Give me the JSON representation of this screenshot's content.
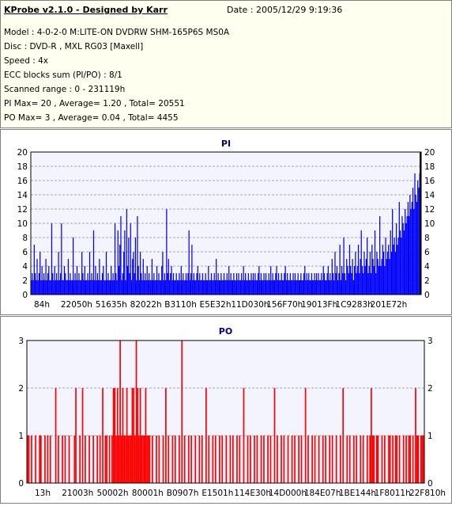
{
  "header": {
    "title": "KProbe v2.1.0 - Designed by Karr",
    "date": "Date : 2005/12/29 9:19:36",
    "lines": [
      "Model : 4-0-2-0 M:LITE-ON DVDRW SHM-165P6S MS0A",
      "Disc : DVD-R , MXL RG03 [Maxell]",
      "Speed : 4x",
      "ECC blocks sum (PI/PO) : 8/1",
      "Scanned range : 0 - 231119h",
      "PI Max= 20 , Average= 1.20 , Total= 20551",
      "PO Max= 3 , Average= 0.04 , Total= 4455"
    ]
  },
  "colors": {
    "pi": "#0000ff",
    "po": "#ff0000",
    "bg": "#f4f4ff",
    "grid": "#909090",
    "title": "#000080"
  },
  "chart_data": [
    {
      "type": "bar",
      "title": "PI",
      "ylim": [
        0,
        20
      ],
      "yticks": [
        0,
        2,
        4,
        6,
        8,
        10,
        12,
        14,
        16,
        18,
        20
      ],
      "xticklabels": [
        "84h",
        "22050h",
        "51635h",
        "82022h",
        "B3110h",
        "E5E32h",
        "11D030h",
        "156F70h",
        "19013Fh",
        "1C9283h",
        "201E72h"
      ],
      "x_range": [
        0,
        231119
      ],
      "series": [
        {
          "values": [
            2,
            3,
            2,
            7,
            3,
            2,
            5,
            2,
            3,
            6,
            2,
            4,
            2,
            3,
            2,
            5,
            2,
            3,
            4,
            2,
            2,
            10,
            3,
            2,
            4,
            2,
            3,
            2,
            6,
            2,
            3,
            10,
            2,
            2,
            4,
            3,
            2,
            2,
            5,
            2,
            3,
            2,
            2,
            8,
            2,
            3,
            2,
            4,
            2,
            3,
            2,
            2,
            6,
            3,
            2,
            4,
            2,
            2,
            3,
            2,
            6,
            2,
            3,
            2,
            9,
            2,
            4,
            2,
            3,
            2,
            5,
            2,
            2,
            3,
            4,
            2,
            2,
            6,
            2,
            3,
            2,
            2,
            4,
            2,
            3,
            2,
            10,
            3,
            2,
            9,
            4,
            7,
            11,
            2,
            3,
            6,
            9,
            2,
            12,
            4,
            8,
            3,
            10,
            2,
            5,
            6,
            3,
            8,
            2,
            11,
            4,
            2,
            6,
            3,
            2,
            5,
            2,
            3,
            2,
            4,
            2,
            3,
            2,
            2,
            5,
            2,
            3,
            2,
            2,
            4,
            2,
            3,
            2,
            2,
            4,
            6,
            2,
            3,
            2,
            12,
            3,
            5,
            2,
            3,
            4,
            2,
            3,
            2,
            2,
            3,
            2,
            2,
            3,
            2,
            4,
            2,
            3,
            2,
            2,
            3,
            2,
            3,
            9,
            2,
            3,
            7,
            2,
            3,
            2,
            2,
            3,
            4,
            2,
            3,
            2,
            2,
            3,
            2,
            2,
            3,
            2,
            2,
            4,
            2,
            2,
            3,
            2,
            2,
            3,
            2,
            5,
            2,
            3,
            2,
            2,
            3,
            2,
            2,
            3,
            2,
            2,
            3,
            2,
            4,
            2,
            3,
            2,
            2,
            3,
            2,
            2,
            3,
            2,
            3,
            2,
            2,
            3,
            2,
            4,
            2,
            3,
            2,
            2,
            3,
            2,
            2,
            3,
            2,
            3,
            2,
            3,
            2,
            2,
            3,
            4,
            2,
            3,
            2,
            2,
            3,
            2,
            3,
            2,
            2,
            3,
            2,
            4,
            2,
            3,
            2,
            2,
            3,
            4,
            2,
            3,
            2,
            2,
            3,
            2,
            2,
            3,
            4,
            2,
            3,
            2,
            2,
            3,
            2,
            2,
            3,
            2,
            3,
            2,
            2,
            3,
            2,
            2,
            3,
            2,
            2,
            3,
            4,
            2,
            3,
            2,
            3,
            2,
            2,
            3,
            2,
            2,
            3,
            2,
            3,
            2,
            3,
            2,
            2,
            3,
            2,
            4,
            3,
            2,
            2,
            3,
            4,
            2,
            3,
            2,
            5,
            3,
            2,
            6,
            3,
            4,
            2,
            3,
            7,
            2,
            4,
            3,
            8,
            3,
            2,
            5,
            4,
            3,
            7,
            4,
            3,
            5,
            2,
            4,
            6,
            3,
            4,
            7,
            3,
            5,
            9,
            4,
            3,
            6,
            4,
            5,
            8,
            3,
            4,
            6,
            3,
            7,
            5,
            4,
            9,
            3,
            6,
            5,
            4,
            11,
            4,
            5,
            7,
            6,
            4,
            8,
            5,
            6,
            7,
            5,
            9,
            6,
            12,
            7,
            8,
            6,
            10,
            7,
            8,
            13,
            9,
            8,
            11,
            10,
            9,
            12,
            10,
            11,
            13,
            11,
            14,
            12,
            13,
            15,
            12,
            17,
            14,
            13,
            16,
            15,
            17,
            20
          ]
        }
      ]
    },
    {
      "type": "bar",
      "title": "PO",
      "ylim": [
        0,
        3
      ],
      "yticks": [
        0,
        1,
        2,
        3
      ],
      "xticklabels": [
        "13h",
        "21003h",
        "50002h",
        "80001h",
        "B0907h",
        "E1501h",
        "114E30h",
        "14D000h",
        "184E07h",
        "1BE144h",
        "1F8011h",
        "22F810h"
      ],
      "x_range": [
        0,
        231119
      ],
      "series": [
        {
          "values": [
            1,
            1,
            0,
            1,
            0,
            0,
            1,
            0,
            0,
            1,
            1,
            0,
            0,
            1,
            0,
            1,
            0,
            1,
            0,
            0,
            0,
            2,
            0,
            1,
            0,
            0,
            1,
            0,
            1,
            0,
            0,
            1,
            0,
            0,
            0,
            1,
            2,
            0,
            0,
            1,
            0,
            2,
            0,
            1,
            0,
            0,
            1,
            0,
            0,
            1,
            0,
            0,
            1,
            0,
            1,
            0,
            2,
            0,
            1,
            1,
            0,
            1,
            0,
            1,
            2,
            2,
            1,
            2,
            1,
            3,
            1,
            2,
            1,
            1,
            2,
            1,
            1,
            1,
            2,
            2,
            1,
            3,
            2,
            1,
            2,
            1,
            1,
            1,
            2,
            1,
            1,
            1,
            0,
            1,
            0,
            0,
            1,
            0,
            1,
            0,
            0,
            1,
            0,
            2,
            0,
            1,
            0,
            0,
            1,
            0,
            1,
            0,
            0,
            1,
            0,
            3,
            0,
            1,
            0,
            0,
            1,
            0,
            1,
            0,
            0,
            1,
            0,
            0,
            1,
            0,
            1,
            0,
            0,
            2,
            0,
            1,
            0,
            0,
            1,
            0,
            1,
            0,
            0,
            1,
            0,
            1,
            0,
            0,
            1,
            0,
            0,
            1,
            0,
            1,
            0,
            0,
            1,
            0,
            1,
            0,
            0,
            2,
            0,
            0,
            1,
            0,
            1,
            0,
            0,
            1,
            0,
            1,
            0,
            0,
            1,
            0,
            1,
            0,
            0,
            1,
            0,
            1,
            0,
            0,
            2,
            0,
            1,
            0,
            0,
            1,
            0,
            1,
            0,
            0,
            1,
            0,
            0,
            1,
            0,
            1,
            0,
            0,
            1,
            0,
            1,
            0,
            0,
            2,
            0,
            1,
            0,
            0,
            1,
            0,
            1,
            0,
            0,
            1,
            0,
            0,
            1,
            0,
            1,
            0,
            0,
            1,
            0,
            1,
            0,
            0,
            1,
            0,
            0,
            1,
            0,
            2,
            0,
            0,
            1,
            0,
            1,
            0,
            0,
            1,
            0,
            1,
            0,
            0,
            1,
            0,
            1,
            0,
            0,
            1,
            0,
            1,
            2,
            1,
            1,
            0,
            1,
            1,
            0,
            0,
            1,
            0,
            1,
            0,
            0,
            1,
            1,
            0,
            1,
            0,
            1,
            1,
            0,
            1,
            0,
            0,
            1,
            0,
            1,
            0,
            1,
            1,
            0,
            1,
            0,
            2,
            1,
            1,
            0,
            1,
            1,
            1
          ]
        }
      ]
    }
  ]
}
